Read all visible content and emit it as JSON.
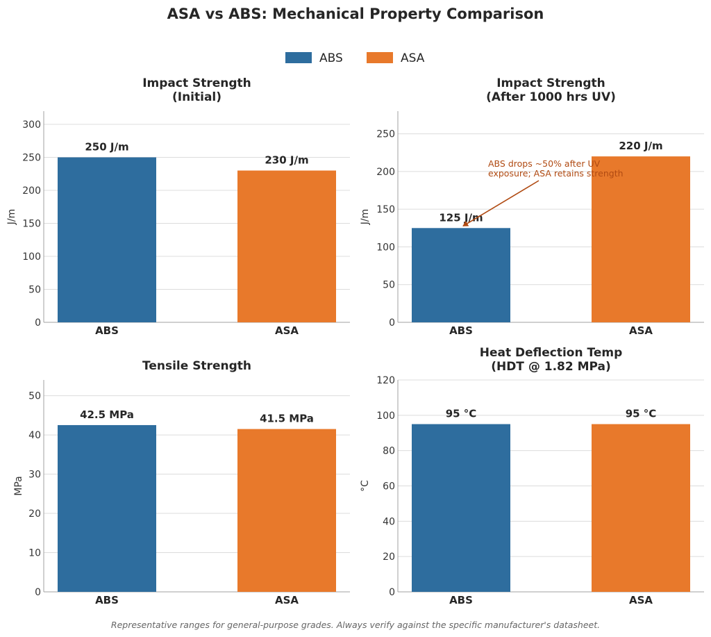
{
  "title": "ASA vs ABS: Mechanical Property Comparison",
  "footnote": "Representative ranges for general-purpose grades. Always verify against the specific manufacturer's datasheet.",
  "colors": {
    "ABS": "#2e6d9e",
    "ASA": "#e8792b",
    "annotation": "#b04a12"
  },
  "legend": [
    {
      "name": "ABS",
      "color": "#2e6d9e"
    },
    {
      "name": "ASA",
      "color": "#e8792b"
    }
  ],
  "chart_data": [
    {
      "type": "bar",
      "title": "Impact Strength\n(Initial)",
      "categories": [
        "ABS",
        "ASA"
      ],
      "values": [
        250,
        230
      ],
      "labels": [
        "250 J/m",
        "230 J/m"
      ],
      "ylabel": "J/m",
      "ylim": [
        0,
        320
      ],
      "yticks": [
        0,
        50,
        100,
        150,
        200,
        250,
        300
      ],
      "grid": true
    },
    {
      "type": "bar",
      "title": "Impact Strength\n(After 1000 hrs UV)",
      "categories": [
        "ABS",
        "ASA"
      ],
      "values": [
        125,
        220
      ],
      "labels": [
        "125 J/m",
        "220 J/m"
      ],
      "ylabel": "J/m",
      "ylim": [
        0,
        280
      ],
      "yticks": [
        0,
        50,
        100,
        150,
        200,
        250
      ],
      "grid": true,
      "annotation": {
        "text": "ABS drops ~50% after UV\nexposure; ASA retains strength",
        "target_category": "ABS",
        "target_value": 125
      }
    },
    {
      "type": "bar",
      "title": "Tensile Strength",
      "categories": [
        "ABS",
        "ASA"
      ],
      "values": [
        42.5,
        41.5
      ],
      "labels": [
        "42.5 MPa",
        "41.5 MPa"
      ],
      "ylabel": "MPa",
      "ylim": [
        0,
        54
      ],
      "yticks": [
        0,
        10,
        20,
        30,
        40,
        50
      ],
      "grid": true
    },
    {
      "type": "bar",
      "title": "Heat Deflection Temp\n(HDT @ 1.82 MPa)",
      "categories": [
        "ABS",
        "ASA"
      ],
      "values": [
        95,
        95
      ],
      "labels": [
        "95 °C",
        "95 °C"
      ],
      "ylabel": "°C",
      "ylim": [
        0,
        120
      ],
      "yticks": [
        0,
        20,
        40,
        60,
        80,
        100,
        120
      ],
      "grid": true
    }
  ]
}
